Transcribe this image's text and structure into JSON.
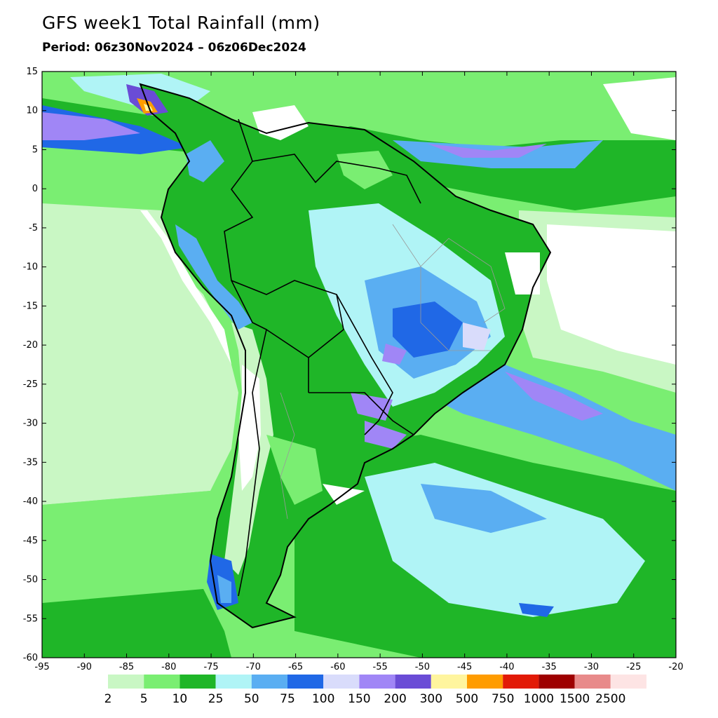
{
  "title": "GFS week1 Total Rainfall (mm)",
  "subtitle": "Period: 06z30Nov2024 – 06z06Dec2024",
  "map": {
    "lon_range": [
      -95,
      -20
    ],
    "lat_range": [
      -60,
      15
    ],
    "x_ticks": [
      "-95",
      "-90",
      "-85",
      "-80",
      "-75",
      "-70",
      "-65",
      "-60",
      "-55",
      "-50",
      "-45",
      "-40",
      "-35",
      "-30",
      "-25",
      "-20"
    ],
    "y_ticks": [
      "15",
      "10",
      "5",
      "0",
      "-5",
      "-10",
      "-15",
      "-20",
      "-25",
      "-30",
      "-35",
      "-40",
      "-45",
      "-50",
      "-55",
      "-60"
    ]
  },
  "colorbar": {
    "colors": [
      "#c9f7c4",
      "#7aee72",
      "#1fb628",
      "#b0f4f6",
      "#5aaef2",
      "#2068e6",
      "#d9dcfb",
      "#a086f6",
      "#6a4cd6",
      "#fff59e",
      "#ff9c00",
      "#e21a06",
      "#9e0000",
      "#e88a8a",
      "#fde4e4"
    ],
    "labels": [
      "2",
      "5",
      "10",
      "25",
      "50",
      "75",
      "100",
      "150",
      "200",
      "300",
      "500",
      "750",
      "1000",
      "1500",
      "2500"
    ]
  }
}
